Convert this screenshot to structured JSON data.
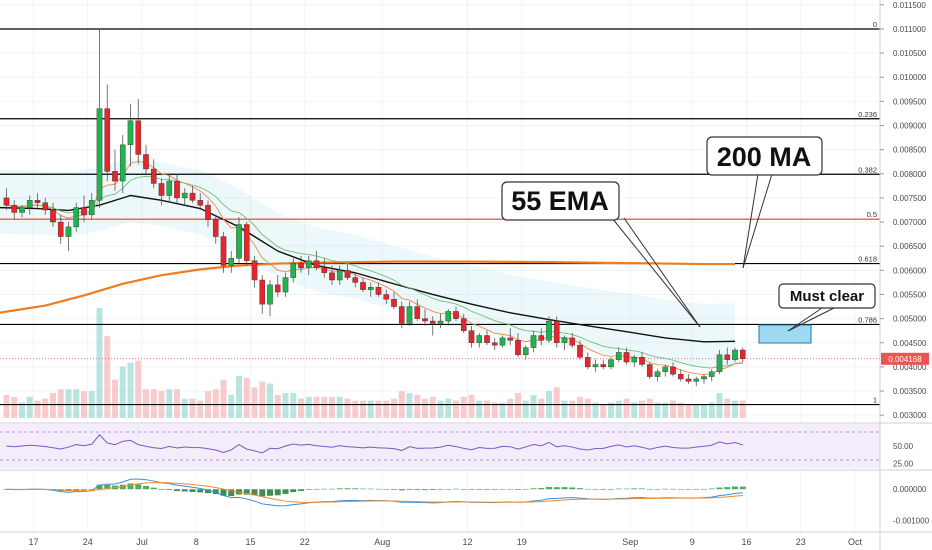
{
  "chart_data": {
    "type": "candlestick",
    "price_axis": {
      "range": [
        0.0029,
        0.0116
      ],
      "ticks": [
        "0.011500",
        "0.011000",
        "0.010500",
        "0.010000",
        "0.009500",
        "0.009000",
        "0.008500",
        "0.008000",
        "0.007500",
        "0.007000",
        "0.006500",
        "0.006000",
        "0.005500",
        "0.005000",
        "0.004500",
        "0.004000",
        "0.003500",
        "0.003000"
      ]
    },
    "date_axis": {
      "labels": [
        {
          "t": 0,
          "label": "17"
        },
        {
          "t": 7,
          "label": "24"
        },
        {
          "t": 14,
          "label": "Jul"
        },
        {
          "t": 21,
          "label": "8"
        },
        {
          "t": 28,
          "label": "15"
        },
        {
          "t": 35,
          "label": "22"
        },
        {
          "t": 45,
          "label": "Aug"
        },
        {
          "t": 56,
          "label": "12"
        },
        {
          "t": 63,
          "label": "19"
        },
        {
          "t": 77,
          "label": "Sep"
        },
        {
          "t": 85,
          "label": "9"
        },
        {
          "t": 92,
          "label": "16"
        },
        {
          "t": 99,
          "label": "23"
        },
        {
          "t": 106,
          "label": "Oct"
        }
      ]
    },
    "current_price": "0.004168",
    "fib_levels": [
      {
        "label": "0",
        "value": 0.011,
        "color": "#000000"
      },
      {
        "label": "0.236",
        "value": 0.00914,
        "color": "#000000"
      },
      {
        "label": "0.382",
        "value": 0.00799,
        "color": "#000000"
      },
      {
        "label": "0.5",
        "value": 0.00706,
        "color": "#e53935"
      },
      {
        "label": "0.618",
        "value": 0.00614,
        "color": "#000000"
      },
      {
        "label": "0.786",
        "value": 0.00488,
        "color": "#000000"
      },
      {
        "label": "1",
        "value": 0.00322,
        "color": "#000000"
      }
    ],
    "annotations": [
      {
        "text": "55 EMA"
      },
      {
        "text": "200 MA"
      },
      {
        "text": "Must clear"
      }
    ],
    "candles": [
      [
        0.0075,
        0.0077,
        0.00725,
        0.00735
      ],
      [
        0.00735,
        0.00745,
        0.00705,
        0.0072
      ],
      [
        0.0072,
        0.00735,
        0.0071,
        0.0073
      ],
      [
        0.0073,
        0.00755,
        0.00715,
        0.00745
      ],
      [
        0.00745,
        0.0076,
        0.0073,
        0.0074
      ],
      [
        0.0074,
        0.0075,
        0.00715,
        0.00725
      ],
      [
        0.00725,
        0.0074,
        0.0069,
        0.007
      ],
      [
        0.007,
        0.00715,
        0.00655,
        0.0067
      ],
      [
        0.0067,
        0.007,
        0.0064,
        0.0069
      ],
      [
        0.0069,
        0.0074,
        0.0068,
        0.0073
      ],
      [
        0.0073,
        0.00755,
        0.007,
        0.00715
      ],
      [
        0.00715,
        0.0076,
        0.00705,
        0.00745
      ],
      [
        0.00745,
        0.011,
        0.0073,
        0.00935
      ],
      [
        0.00935,
        0.00985,
        0.00785,
        0.00805
      ],
      [
        0.00805,
        0.0085,
        0.00765,
        0.00785
      ],
      [
        0.00785,
        0.0088,
        0.0076,
        0.0086
      ],
      [
        0.0086,
        0.00945,
        0.00815,
        0.0091
      ],
      [
        0.0091,
        0.00955,
        0.0082,
        0.0084
      ],
      [
        0.0084,
        0.0086,
        0.008,
        0.0081
      ],
      [
        0.0081,
        0.0083,
        0.0077,
        0.0078
      ],
      [
        0.0078,
        0.0079,
        0.00735,
        0.00755
      ],
      [
        0.00755,
        0.008,
        0.0074,
        0.00785
      ],
      [
        0.00785,
        0.008,
        0.0074,
        0.0075
      ],
      [
        0.0075,
        0.0077,
        0.00735,
        0.0076
      ],
      [
        0.0076,
        0.00775,
        0.0074,
        0.00745
      ],
      [
        0.00745,
        0.0076,
        0.0073,
        0.00735
      ],
      [
        0.00735,
        0.00745,
        0.0069,
        0.00705
      ],
      [
        0.00705,
        0.00715,
        0.00655,
        0.0067
      ],
      [
        0.0067,
        0.0068,
        0.00595,
        0.0061
      ],
      [
        0.0061,
        0.0064,
        0.00595,
        0.00625
      ],
      [
        0.00625,
        0.0071,
        0.00615,
        0.00695
      ],
      [
        0.00695,
        0.007,
        0.0061,
        0.0062
      ],
      [
        0.0062,
        0.0063,
        0.00565,
        0.0058
      ],
      [
        0.0058,
        0.0059,
        0.0051,
        0.0053
      ],
      [
        0.0053,
        0.0058,
        0.00505,
        0.0057
      ],
      [
        0.0057,
        0.0059,
        0.00545,
        0.00555
      ],
      [
        0.00555,
        0.00595,
        0.00545,
        0.00585
      ],
      [
        0.00585,
        0.00625,
        0.00575,
        0.00615
      ],
      [
        0.00615,
        0.0063,
        0.00595,
        0.00605
      ],
      [
        0.00605,
        0.0063,
        0.0059,
        0.0062
      ],
      [
        0.0062,
        0.0064,
        0.006,
        0.00605
      ],
      [
        0.00605,
        0.00625,
        0.00585,
        0.00595
      ],
      [
        0.00595,
        0.0061,
        0.0057,
        0.0058
      ],
      [
        0.0058,
        0.0061,
        0.0057,
        0.006
      ],
      [
        0.006,
        0.00615,
        0.0058,
        0.00585
      ],
      [
        0.00585,
        0.00595,
        0.00565,
        0.00575
      ],
      [
        0.00575,
        0.00585,
        0.00555,
        0.0056
      ],
      [
        0.0056,
        0.00575,
        0.00545,
        0.00565
      ],
      [
        0.00565,
        0.00575,
        0.00545,
        0.0055
      ],
      [
        0.0055,
        0.0056,
        0.0053,
        0.0054
      ],
      [
        0.0054,
        0.00555,
        0.0052,
        0.00525
      ],
      [
        0.00525,
        0.00535,
        0.0048,
        0.0049
      ],
      [
        0.0049,
        0.00535,
        0.00485,
        0.00525
      ],
      [
        0.00525,
        0.0054,
        0.00495,
        0.005
      ],
      [
        0.005,
        0.0052,
        0.00485,
        0.00495
      ],
      [
        0.00495,
        0.00505,
        0.00465,
        0.0049
      ],
      [
        0.0049,
        0.0051,
        0.0048,
        0.00495
      ],
      [
        0.00495,
        0.0052,
        0.00485,
        0.00515
      ],
      [
        0.00515,
        0.00525,
        0.00495,
        0.005
      ],
      [
        0.005,
        0.0051,
        0.0047,
        0.00475
      ],
      [
        0.00475,
        0.00485,
        0.0044,
        0.0045
      ],
      [
        0.0045,
        0.0047,
        0.0044,
        0.00465
      ],
      [
        0.00465,
        0.00475,
        0.00445,
        0.0045
      ],
      [
        0.0045,
        0.0046,
        0.00435,
        0.00445
      ],
      [
        0.00445,
        0.00465,
        0.0044,
        0.0046
      ],
      [
        0.0046,
        0.0048,
        0.00445,
        0.00455
      ],
      [
        0.00455,
        0.0047,
        0.0042,
        0.00425
      ],
      [
        0.00425,
        0.00445,
        0.00415,
        0.0044
      ],
      [
        0.0044,
        0.00475,
        0.0043,
        0.00465
      ],
      [
        0.00465,
        0.0048,
        0.00445,
        0.00455
      ],
      [
        0.00455,
        0.00505,
        0.0045,
        0.00495
      ],
      [
        0.00495,
        0.00505,
        0.0044,
        0.0045
      ],
      [
        0.0045,
        0.00465,
        0.00435,
        0.0046
      ],
      [
        0.0046,
        0.0047,
        0.0044,
        0.00445
      ],
      [
        0.00445,
        0.00455,
        0.00415,
        0.0042
      ],
      [
        0.0042,
        0.0043,
        0.00395,
        0.004
      ],
      [
        0.004,
        0.00415,
        0.0039,
        0.00405
      ],
      [
        0.00405,
        0.00415,
        0.00395,
        0.004
      ],
      [
        0.004,
        0.0042,
        0.00395,
        0.00415
      ],
      [
        0.00415,
        0.0044,
        0.0041,
        0.0043
      ],
      [
        0.0043,
        0.0044,
        0.00405,
        0.0041
      ],
      [
        0.0041,
        0.00425,
        0.004,
        0.0042
      ],
      [
        0.0042,
        0.0043,
        0.004,
        0.00405
      ],
      [
        0.00405,
        0.0041,
        0.00375,
        0.0038
      ],
      [
        0.0038,
        0.00395,
        0.0037,
        0.0039
      ],
      [
        0.0039,
        0.00405,
        0.0038,
        0.004
      ],
      [
        0.004,
        0.0041,
        0.0038,
        0.00385
      ],
      [
        0.00385,
        0.00395,
        0.0037,
        0.00375
      ],
      [
        0.00375,
        0.00385,
        0.00365,
        0.0037
      ],
      [
        0.0037,
        0.0038,
        0.0036,
        0.00375
      ],
      [
        0.00375,
        0.00385,
        0.00365,
        0.0038
      ],
      [
        0.0038,
        0.00395,
        0.0037,
        0.0039
      ],
      [
        0.0039,
        0.00435,
        0.00385,
        0.00425
      ],
      [
        0.00425,
        0.0044,
        0.00405,
        0.00415
      ],
      [
        0.00415,
        0.0044,
        0.0041,
        0.00435
      ],
      [
        0.00435,
        0.0044,
        0.0041,
        0.00417
      ]
    ],
    "ema55": [
      [
        -1,
        0.0073
      ],
      [
        4,
        0.00728
      ],
      [
        8,
        0.00724
      ],
      [
        12,
        0.00735
      ],
      [
        16,
        0.00755
      ],
      [
        20,
        0.00745
      ],
      [
        25,
        0.00728
      ],
      [
        30,
        0.0069
      ],
      [
        35,
        0.0064
      ],
      [
        40,
        0.0061
      ],
      [
        45,
        0.00595
      ],
      [
        50,
        0.00572
      ],
      [
        55,
        0.0055
      ],
      [
        60,
        0.0053
      ],
      [
        65,
        0.00512
      ],
      [
        70,
        0.00498
      ],
      [
        75,
        0.00485
      ],
      [
        80,
        0.00473
      ],
      [
        85,
        0.0046
      ],
      [
        90,
        0.00452
      ],
      [
        94,
        0.00453
      ]
    ],
    "ma200": [
      [
        -1,
        0.00512
      ],
      [
        5,
        0.00527
      ],
      [
        10,
        0.00548
      ],
      [
        15,
        0.00572
      ],
      [
        20,
        0.0059
      ],
      [
        25,
        0.00602
      ],
      [
        30,
        0.0061
      ],
      [
        35,
        0.00614
      ],
      [
        40,
        0.00616
      ],
      [
        50,
        0.00618
      ],
      [
        60,
        0.00618
      ],
      [
        70,
        0.00617
      ],
      [
        80,
        0.00615
      ],
      [
        90,
        0.00613
      ],
      [
        94,
        0.00613
      ]
    ],
    "rsi": {
      "ticks": [
        "50.00",
        "25.00"
      ],
      "range": [
        20,
        80
      ]
    },
    "macd": {
      "ticks": [
        "0.000000",
        "-0.001000"
      ],
      "range": [
        -0.0013,
        0.00055
      ]
    }
  }
}
